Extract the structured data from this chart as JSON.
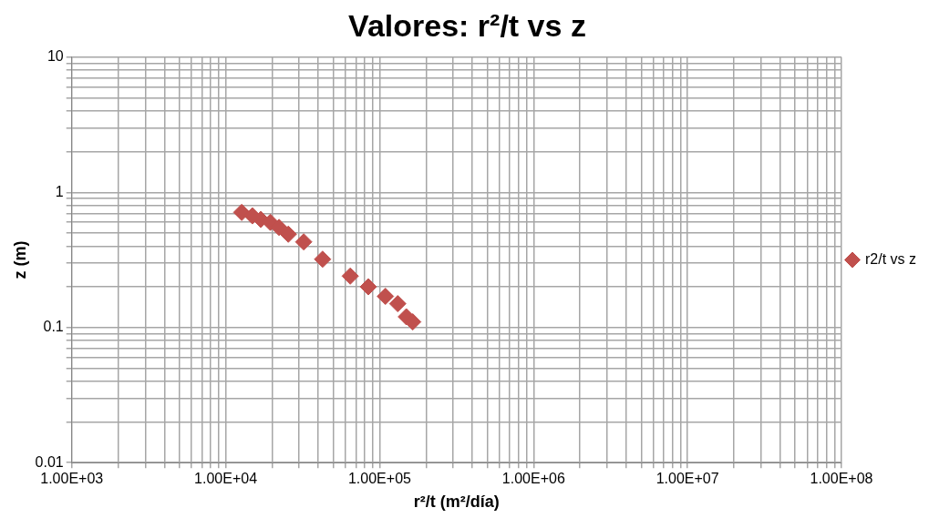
{
  "chart_data": {
    "type": "scatter",
    "title": "Valores: r²/t vs z",
    "xlabel": "r²/t (m²/día)",
    "ylabel": "z (m)",
    "x": [
      12700,
      14900,
      16900,
      19500,
      22200,
      25500,
      32100,
      42600,
      64400,
      84400,
      109000,
      131000,
      149000,
      164000
    ],
    "series": [
      {
        "name": "r2/t vs z",
        "color": "#c0504d",
        "values": [
          0.71,
          0.67,
          0.63,
          0.6,
          0.55,
          0.49,
          0.43,
          0.32,
          0.24,
          0.2,
          0.17,
          0.15,
          0.12,
          0.11
        ]
      }
    ],
    "log": "xy",
    "xlim": [
      1000,
      100000000
    ],
    "ylim": [
      0.01,
      10
    ],
    "xticks": [
      {
        "value": 1000,
        "label": "1.00E+03"
      },
      {
        "value": 10000,
        "label": "1.00E+04"
      },
      {
        "value": 100000,
        "label": "1.00E+05"
      },
      {
        "value": 1000000,
        "label": "1.00E+06"
      },
      {
        "value": 10000000,
        "label": "1.00E+07"
      },
      {
        "value": 100000000,
        "label": "1.00E+08"
      }
    ],
    "yticks": [
      0.01,
      0.1,
      1,
      10
    ],
    "grid": true,
    "legend": "right",
    "marker": "diamond"
  }
}
